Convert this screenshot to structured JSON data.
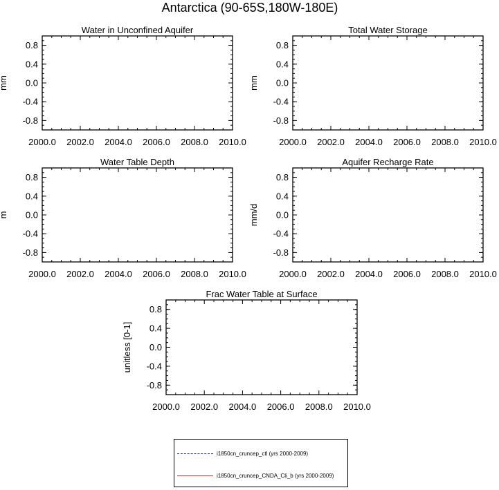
{
  "figure_title": "Antarctica (90-65S,180W-180E)",
  "chart_data": [
    {
      "type": "line",
      "title": "Water in Unconfined Aquifer",
      "xlabel": "",
      "ylabel": "mm",
      "xlim": [
        2000,
        2010
      ],
      "ylim": [
        -1,
        1
      ],
      "x_ticks": [
        "2000.0",
        "2002.0",
        "2004.0",
        "2006.0",
        "2008.0",
        "2010.0"
      ],
      "y_ticks": [
        "0.8",
        "0.4",
        "0.0",
        "-0.4",
        "-0.8"
      ],
      "series": []
    },
    {
      "type": "line",
      "title": "Total Water Storage",
      "xlabel": "",
      "ylabel": "mm",
      "xlim": [
        2000,
        2010
      ],
      "ylim": [
        -1,
        1
      ],
      "x_ticks": [
        "2000.0",
        "2002.0",
        "2004.0",
        "2006.0",
        "2008.0",
        "2010.0"
      ],
      "y_ticks": [
        "0.8",
        "0.4",
        "0.0",
        "-0.4",
        "-0.8"
      ],
      "series": []
    },
    {
      "type": "line",
      "title": "Water Table Depth",
      "xlabel": "",
      "ylabel": "m",
      "xlim": [
        2000,
        2010
      ],
      "ylim": [
        -1,
        1
      ],
      "x_ticks": [
        "2000.0",
        "2002.0",
        "2004.0",
        "2006.0",
        "2008.0",
        "2010.0"
      ],
      "y_ticks": [
        "0.8",
        "0.4",
        "0.0",
        "-0.4",
        "-0.8"
      ],
      "series": []
    },
    {
      "type": "line",
      "title": "Aquifer Recharge Rate",
      "xlabel": "",
      "ylabel": "mm/d",
      "xlim": [
        2000,
        2010
      ],
      "ylim": [
        -1,
        1
      ],
      "x_ticks": [
        "2000.0",
        "2002.0",
        "2004.0",
        "2006.0",
        "2008.0",
        "2010.0"
      ],
      "y_ticks": [
        "0.8",
        "0.4",
        "0.0",
        "-0.4",
        "-0.8"
      ],
      "series": []
    },
    {
      "type": "line",
      "title": "Frac Water Table at Surface",
      "xlabel": "",
      "ylabel": "unitless [0-1]",
      "xlim": [
        2000,
        2010
      ],
      "ylim": [
        -1,
        1
      ],
      "x_ticks": [
        "2000.0",
        "2002.0",
        "2004.0",
        "2006.0",
        "2008.0",
        "2010.0"
      ],
      "y_ticks": [
        "0.8",
        "0.4",
        "0.0",
        "-0.4",
        "-0.8"
      ],
      "series": []
    }
  ],
  "legend": {
    "items": [
      {
        "label": "i1850cn_cruncep_ctl (yrs 2000-2009)",
        "color": "#1a2f8c",
        "style": "dashed"
      },
      {
        "label": "i1850cn_cruncep_CNDA_Cli_b (yrs 2000-2009)",
        "color": "#e02020",
        "style": "solid"
      }
    ]
  }
}
